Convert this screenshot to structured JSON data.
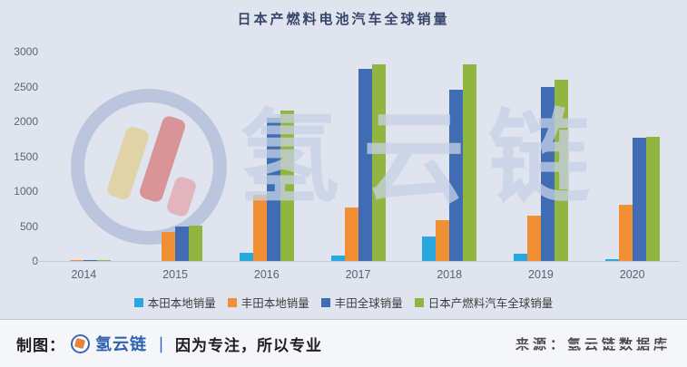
{
  "title": "日本产燃料电池汽车全球销量",
  "watermark": {
    "text": "氢云链"
  },
  "footer": {
    "made_by_label": "制图：",
    "brand": "氢云链",
    "separator": "｜",
    "slogan": "因为专注，所以专业",
    "source": "来源：氢云链数据库"
  },
  "chart_data": {
    "type": "bar",
    "title": "日本产燃料电池汽车全球销量",
    "categories": [
      "2014",
      "2015",
      "2016",
      "2017",
      "2018",
      "2019",
      "2020"
    ],
    "series": [
      {
        "name": "本田本地销量",
        "color": "#29a8df",
        "values": [
          0,
          0,
          120,
          80,
          350,
          110,
          30
        ]
      },
      {
        "name": "丰田本地销量",
        "color": "#f18f35",
        "values": [
          10,
          410,
          950,
          770,
          590,
          650,
          800
        ]
      },
      {
        "name": "丰田全球销量",
        "color": "#3f6cb2",
        "values": [
          10,
          500,
          2050,
          2750,
          2450,
          2500,
          1770
        ]
      },
      {
        "name": "日本产燃料汽车全球销量",
        "color": "#90b541",
        "values": [
          15,
          510,
          2150,
          2820,
          2820,
          2600,
          1780
        ]
      }
    ],
    "xlabel": "",
    "ylabel": "",
    "ylim": [
      0,
      3000
    ],
    "y_ticks": [
      0,
      500,
      1000,
      1500,
      2000,
      2500,
      3000
    ],
    "grid": false,
    "legend_position": "bottom"
  },
  "colors": {
    "background": "#e0e4ee",
    "footer_background": "#f4f6fa",
    "title_text": "#38466b",
    "axis_text": "#5b6375",
    "legend_text": "#3d3d3d",
    "brand_blue": "#2f62ae"
  }
}
